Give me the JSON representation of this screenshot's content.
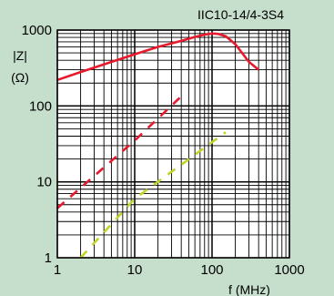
{
  "chart_data": {
    "type": "line",
    "title": "IIC10-14/4-3S4",
    "xlabel": "f  (MHz)",
    "ylabel_line1": "|Z|",
    "ylabel_line2": "(Ω)",
    "x_scale": "log",
    "y_scale": "log",
    "xlim": [
      1,
      1000
    ],
    "ylim": [
      1,
      1000
    ],
    "x_ticks": [
      1,
      10,
      100,
      1000
    ],
    "x_tick_labels": [
      "1",
      "10",
      "100",
      "1000"
    ],
    "y_ticks": [
      1,
      10,
      100,
      1000
    ],
    "y_tick_labels": [
      "1",
      "10",
      "100",
      "1000"
    ],
    "grid": true,
    "plot_background": "#ffffff",
    "page_background": "#c6dfcc",
    "series": [
      {
        "style": "solid",
        "color": "#e8192c",
        "points": [
          [
            1,
            220
          ],
          [
            2,
            280
          ],
          [
            5,
            380
          ],
          [
            10,
            480
          ],
          [
            20,
            600
          ],
          [
            40,
            720
          ],
          [
            60,
            810
          ],
          [
            80,
            870
          ],
          [
            100,
            900
          ],
          [
            120,
            890
          ],
          [
            150,
            830
          ],
          [
            200,
            650
          ],
          [
            300,
            380
          ],
          [
            400,
            300
          ]
        ]
      },
      {
        "style": "dashed",
        "color": "#e8192c",
        "points": [
          [
            1,
            4.5
          ],
          [
            10,
            35
          ],
          [
            45,
            150
          ]
        ]
      },
      {
        "style": "dashed",
        "color": "#c2d42a",
        "points": [
          [
            2,
            1
          ],
          [
            10,
            6
          ],
          [
            150,
            45
          ]
        ]
      }
    ]
  }
}
